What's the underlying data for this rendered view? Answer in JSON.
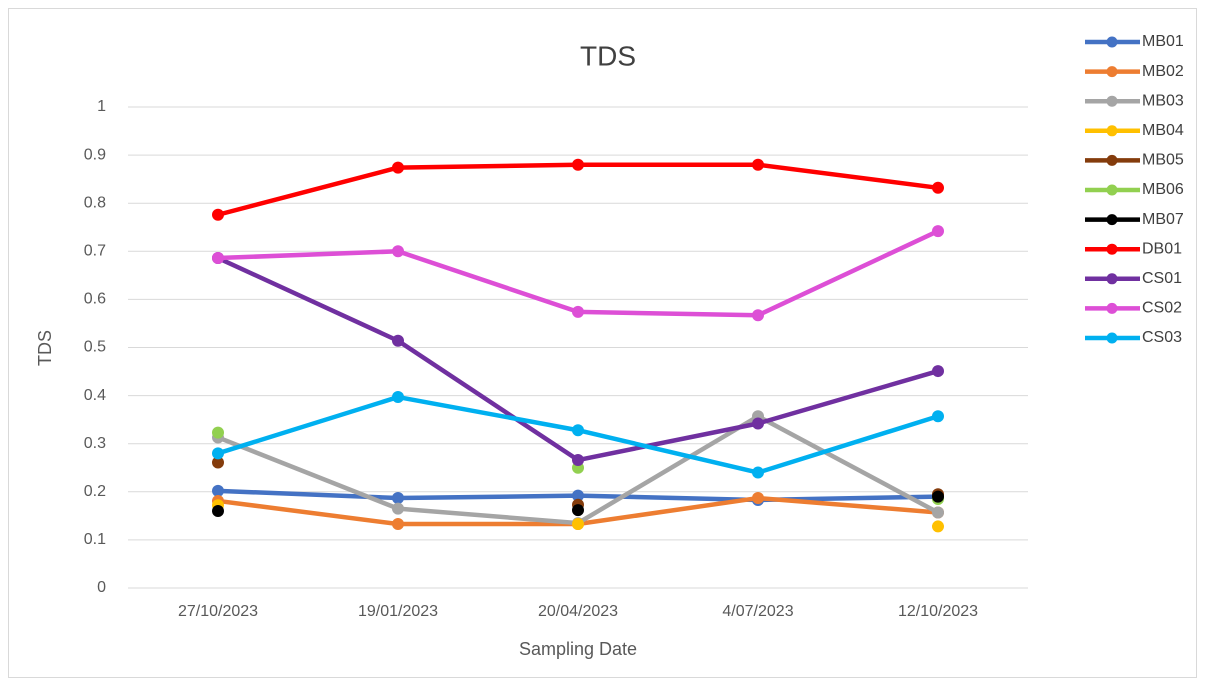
{
  "chart_data": {
    "type": "line",
    "title": "TDS",
    "x_label": "Sampling Date",
    "y_label": "TDS",
    "categories": [
      "27/10/2023",
      "19/01/2023",
      "20/04/2023",
      "4/07/2023",
      "12/10/2023"
    ],
    "ylim": [
      0,
      1
    ],
    "yticks": [
      0,
      0.1,
      0.2,
      0.3,
      0.4,
      0.5,
      0.6,
      0.7,
      0.8,
      0.9,
      1
    ],
    "grid": true,
    "legend": "right",
    "series": [
      {
        "name": "MB01",
        "color": "#4472c4",
        "values": [
          0.202,
          0.187,
          0.192,
          0.183,
          0.19
        ]
      },
      {
        "name": "MB02",
        "color": "#ed7d31",
        "values": [
          0.181,
          0.133,
          0.133,
          0.187,
          0.157
        ]
      },
      {
        "name": "MB03",
        "color": "#a5a5a5",
        "values": [
          0.313,
          0.165,
          0.135,
          0.357,
          0.157
        ]
      },
      {
        "name": "MB04",
        "color": "#ffc000",
        "values": [
          0.172,
          null,
          0.133,
          null,
          0.128
        ]
      },
      {
        "name": "MB05",
        "color": "#843c0c",
        "values": [
          0.261,
          null,
          0.173,
          null,
          0.195
        ]
      },
      {
        "name": "MB06",
        "color": "#92d050",
        "values": [
          0.323,
          null,
          0.25,
          null,
          0.185
        ]
      },
      {
        "name": "MB07",
        "color": "#000000",
        "values": [
          0.16,
          null,
          0.162,
          null,
          0.19
        ]
      },
      {
        "name": "DB01",
        "color": "#ff0000",
        "values": [
          0.776,
          0.874,
          0.88,
          0.88,
          0.832
        ]
      },
      {
        "name": "CS01",
        "color": "#7030a0",
        "values": [
          0.686,
          0.514,
          0.266,
          0.342,
          0.451
        ]
      },
      {
        "name": "CS02",
        "color": "#dd4fd6",
        "values": [
          0.686,
          0.7,
          0.574,
          0.567,
          0.742
        ]
      },
      {
        "name": "CS03",
        "color": "#00b0f0",
        "values": [
          0.28,
          0.397,
          0.328,
          0.24,
          0.357
        ]
      }
    ]
  }
}
